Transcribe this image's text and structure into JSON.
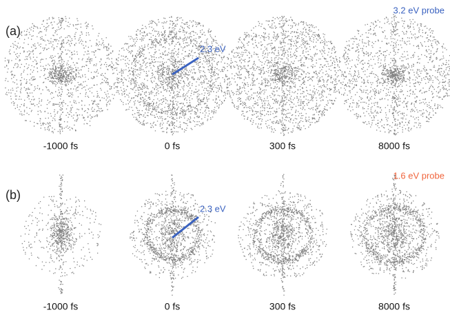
{
  "panels": [
    {
      "label": "(a)",
      "probe": "3.2 eV probe",
      "annotation": "2.3 eV",
      "delays": [
        "-1000 fs",
        "0 fs",
        "300 fs",
        "8000 fs"
      ]
    },
    {
      "label": "(b)",
      "probe": "1.6 eV probe",
      "annotation": "2.3 eV",
      "delays": [
        "-1000 fs",
        "0 fs",
        "300 fs",
        "8000 fs"
      ]
    }
  ]
}
